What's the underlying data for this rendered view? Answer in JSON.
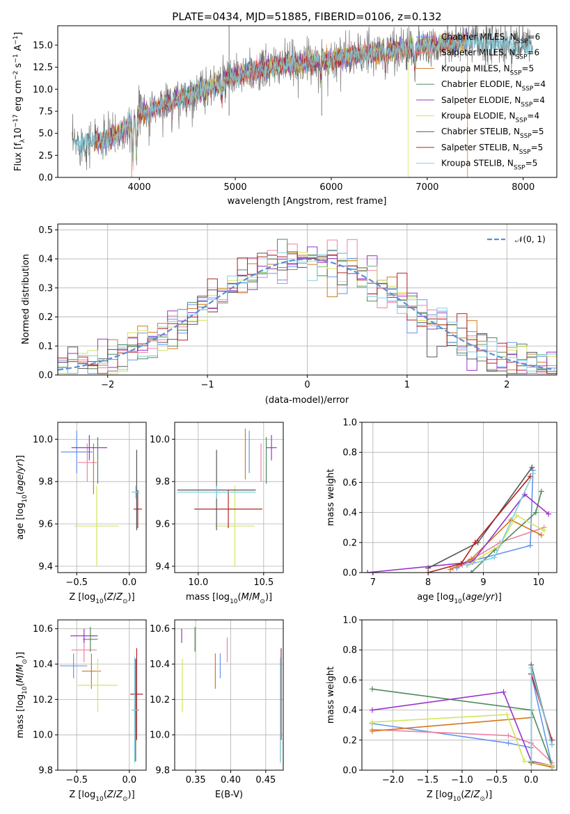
{
  "colors": {
    "Chabrier MILES": "#6495ed",
    "Salpeter MILES": "#f080a0",
    "Kroupa MILES": "#d2781e",
    "Chabrier ELODIE": "#4e8a5a",
    "Salpeter ELODIE": "#9932cc",
    "Kroupa ELODIE": "#d4e45a",
    "Chabrier STELIB": "#555555",
    "Salpeter STELIB": "#b22222",
    "Kroupa STELIB": "#7ecfe0",
    "normal": "#5b8ed6"
  },
  "labels": {
    "wavelength": "wavelength [Angstrom, rest frame]",
    "flux": "Flux [f",
    "resid": "(data-model)/error",
    "normed": "Normed distribution",
    "age": "age  [log",
    "mass": "mass [log",
    "Z": "Z [log",
    "massweight": "mass weight",
    "ebv": "E(B-V)"
  },
  "chart_data": [
    {
      "type": "line",
      "title": "PLATE=0434, MJD=51885, FIBERID=0106, z=0.132",
      "xlabel": "wavelength [Angstrom, rest frame]",
      "ylabel": "Flux [fλ10^-17 erg cm^-2 s^-1 A^-1]",
      "xlim": [
        3150,
        8350
      ],
      "ylim": [
        0,
        17.2
      ],
      "xticks": [
        4000,
        5000,
        6000,
        7000,
        8000
      ],
      "yticks": [
        0.0,
        2.5,
        5.0,
        7.5,
        10.0,
        12.5,
        15.0
      ],
      "continuum": {
        "x": [
          3300,
          3600,
          3800,
          4000,
          4300,
          4600,
          5000,
          5500,
          6000,
          6500,
          7000,
          7400,
          8000,
          8100
        ],
        "y": [
          3.8,
          4.2,
          5.0,
          7.2,
          8.5,
          9.6,
          11.5,
          12.8,
          13.4,
          14.2,
          14.9,
          15.3,
          15.1,
          14.6
        ]
      },
      "series": [
        {
          "name": "Chabrier MILES, N_SSP=6",
          "label": "Chabrier MILES, N",
          "sub": "SSP",
          "tail": "=6"
        },
        {
          "name": "Salpeter MILES, N_SSP=6",
          "label": "Salpeter MILES, N",
          "sub": "SSP",
          "tail": "=6"
        },
        {
          "name": "Kroupa MILES, N_SSP=5",
          "label": "Kroupa MILES, N",
          "sub": "SSP",
          "tail": "=5"
        },
        {
          "name": "Chabrier ELODIE, N_SSP=4",
          "label": "Chabrier ELODIE, N",
          "sub": "SSP",
          "tail": "=4"
        },
        {
          "name": "Salpeter ELODIE, N_SSP=4",
          "label": "Salpeter ELODIE, N",
          "sub": "SSP",
          "tail": "=4"
        },
        {
          "name": "Kroupa ELODIE, N_SSP=4",
          "label": "Kroupa ELODIE, N",
          "sub": "SSP",
          "tail": "=4"
        },
        {
          "name": "Chabrier STELIB, N_SSP=5",
          "label": "Chabrier STELIB, N",
          "sub": "SSP",
          "tail": "=5"
        },
        {
          "name": "Salpeter STELIB, N_SSP=5",
          "label": "Salpeter STELIB, N",
          "sub": "SSP",
          "tail": "=5"
        },
        {
          "name": "Kroupa STELIB, N_SSP=5",
          "label": "Kroupa STELIB, N",
          "sub": "SSP",
          "tail": "=5"
        }
      ],
      "legend": "top-right"
    },
    {
      "type": "histogram",
      "xlabel": "(data-model)/error",
      "ylabel": "Normed distribution",
      "xlim": [
        -2.5,
        2.5
      ],
      "ylim": [
        0,
        0.52
      ],
      "xticks": [
        -2,
        -1,
        0,
        1,
        2
      ],
      "yticks": [
        0.0,
        0.1,
        0.2,
        0.3,
        0.4,
        0.5
      ],
      "bin_width": 0.1,
      "legend": "top-right",
      "overlay": {
        "name": "N(0,1)",
        "mu": 0,
        "sigma": 1
      }
    },
    {
      "type": "scatter",
      "xlabel": "Z [log10(Z/Zsun)]",
      "ylabel": "age [log10(age/yr)]",
      "xlim": [
        -0.68,
        0.16
      ],
      "ylim": [
        9.37,
        10.08
      ],
      "xticks": [
        -0.5,
        0.0
      ],
      "yticks": [
        9.4,
        9.6,
        9.8,
        10.0
      ],
      "points": [
        {
          "s": "Chabrier MILES",
          "x": -0.5,
          "xe": 0.15,
          "y": 9.94,
          "ye": 0.1
        },
        {
          "s": "Salpeter MILES",
          "x": -0.4,
          "xe": 0.09,
          "y": 9.89,
          "ye": 0.09
        },
        {
          "s": "Kroupa MILES",
          "x": -0.34,
          "xe": 0.0,
          "y": 9.86,
          "ye": 0.12
        },
        {
          "s": "Chabrier ELODIE",
          "x": -0.3,
          "xe": 0.0,
          "y": 9.9,
          "ye": 0.11
        },
        {
          "s": "Salpeter ELODIE",
          "x": -0.38,
          "xe": 0.17,
          "y": 9.96,
          "ye": 0.06
        },
        {
          "s": "Kroupa ELODIE",
          "x": -0.31,
          "xe": 0.21,
          "y": 9.59,
          "ye": 0.19
        },
        {
          "s": "Chabrier STELIB",
          "x": 0.07,
          "xe": 0.0,
          "y": 9.76,
          "ye": 0.19
        },
        {
          "s": "Salpeter STELIB",
          "x": 0.08,
          "xe": 0.04,
          "y": 9.67,
          "ye": 0.09
        },
        {
          "s": "Kroupa STELIB",
          "x": 0.06,
          "xe": 0.04,
          "y": 9.75,
          "ye": 0.03
        }
      ]
    },
    {
      "type": "scatter",
      "xlabel": "mass [log10(M/Msun)]",
      "ylabel": "",
      "xlim": [
        9.82,
        10.65
      ],
      "ylim": [
        9.37,
        10.08
      ],
      "xticks": [
        10.0,
        10.5
      ],
      "yticks": [
        9.4,
        9.6,
        9.8,
        10.0
      ],
      "points": [
        {
          "s": "Chabrier MILES",
          "x": 10.39,
          "xe": 0.0,
          "y": 9.94,
          "ye": 0.1
        },
        {
          "s": "Salpeter MILES",
          "x": 10.48,
          "xe": 0.0,
          "y": 9.89,
          "ye": 0.09
        },
        {
          "s": "Kroupa MILES",
          "x": 10.36,
          "xe": 0.0,
          "y": 9.93,
          "ye": 0.12
        },
        {
          "s": "Chabrier ELODIE",
          "x": 10.52,
          "xe": 0.0,
          "y": 9.9,
          "ye": 0.11
        },
        {
          "s": "Salpeter ELODIE",
          "x": 10.56,
          "xe": 0.04,
          "y": 9.96,
          "ye": 0.06
        },
        {
          "s": "Kroupa ELODIE",
          "x": 10.28,
          "xe": 0.15,
          "y": 9.59,
          "ye": 0.19
        },
        {
          "s": "Chabrier STELIB",
          "x": 10.14,
          "xe": 0.3,
          "y": 9.76,
          "ye": 0.19
        },
        {
          "s": "Salpeter STELIB",
          "x": 10.23,
          "xe": 0.26,
          "y": 9.67,
          "ye": 0.09
        },
        {
          "s": "Kroupa STELIB",
          "x": 10.14,
          "xe": 0.3,
          "y": 9.75,
          "ye": 0.03
        }
      ]
    },
    {
      "type": "line",
      "xlabel": "age [log10(age/yr)]",
      "ylabel": "mass weight",
      "xlim": [
        6.8,
        10.33
      ],
      "ylim": [
        0,
        1
      ],
      "xticks": [
        7,
        8,
        9,
        10
      ],
      "yticks": [
        0.0,
        0.2,
        0.4,
        0.6,
        0.8,
        1.0
      ],
      "series": [
        {
          "s": "Chabrier MILES",
          "x": [
            8.52,
            8.72,
            9.85,
            9.9
          ],
          "y": [
            0.03,
            0.07,
            0.18,
            0.68
          ]
        },
        {
          "s": "Salpeter MILES",
          "x": [
            8.45,
            8.62,
            9.3,
            10.1
          ],
          "y": [
            0.03,
            0.05,
            0.2,
            0.3
          ]
        },
        {
          "s": "Kroupa MILES",
          "x": [
            8.4,
            8.78,
            9.5,
            10.05
          ],
          "y": [
            0.02,
            0.09,
            0.35,
            0.25
          ]
        },
        {
          "s": "Chabrier ELODIE",
          "x": [
            8.78,
            9.2,
            9.95,
            10.05
          ],
          "y": [
            0.0,
            0.15,
            0.4,
            0.54
          ]
        },
        {
          "s": "Salpeter ELODIE",
          "x": [
            6.9,
            8.8,
            9.75,
            10.18
          ],
          "y": [
            0.0,
            0.07,
            0.52,
            0.39
          ]
        },
        {
          "s": "Kroupa ELODIE",
          "x": [
            8.72,
            9.3,
            9.6,
            10.1
          ],
          "y": [
            0.05,
            0.18,
            0.38,
            0.28
          ]
        },
        {
          "s": "Chabrier STELIB",
          "x": [
            8.0,
            8.9,
            9.88
          ],
          "y": [
            0.03,
            0.2,
            0.7
          ]
        },
        {
          "s": "Salpeter STELIB",
          "x": [
            8.0,
            8.6,
            8.85,
            9.85
          ],
          "y": [
            0.0,
            0.06,
            0.2,
            0.64
          ]
        },
        {
          "s": "Kroupa STELIB",
          "x": [
            8.7,
            9.2,
            9.9
          ],
          "y": [
            0.05,
            0.1,
            0.66
          ]
        }
      ]
    },
    {
      "type": "scatter",
      "xlabel": "Z [log10(Z/Zsun)]",
      "ylabel": "mass [log10(M/Msun)]",
      "xlim": [
        -0.68,
        0.16
      ],
      "ylim": [
        9.8,
        10.65
      ],
      "xticks": [
        -0.5,
        0.0
      ],
      "yticks": [
        9.8,
        10.0,
        10.2,
        10.4,
        10.6
      ],
      "points": [
        {
          "s": "Chabrier MILES",
          "x": -0.53,
          "xe": 0.13,
          "y": 10.39,
          "ye": 0.07
        },
        {
          "s": "Salpeter MILES",
          "x": -0.43,
          "xe": 0.12,
          "y": 10.48,
          "ye": 0.07
        },
        {
          "s": "Kroupa MILES",
          "x": -0.36,
          "xe": 0.09,
          "y": 10.36,
          "ye": 0.1
        },
        {
          "s": "Chabrier ELODIE",
          "x": -0.37,
          "xe": 0.07,
          "y": 10.54,
          "ye": 0.07
        },
        {
          "s": "Salpeter ELODIE",
          "x": -0.43,
          "xe": 0.13,
          "y": 10.56,
          "ye": 0.04
        },
        {
          "s": "Kroupa ELODIE",
          "x": -0.3,
          "xe": 0.19,
          "y": 10.28,
          "ye": 0.15
        },
        {
          "s": "Chabrier STELIB",
          "x": 0.06,
          "xe": 0.03,
          "y": 10.14,
          "ye": 0.29
        },
        {
          "s": "Salpeter STELIB",
          "x": 0.07,
          "xe": 0.06,
          "y": 10.23,
          "ye": 0.26
        },
        {
          "s": "Kroupa STELIB",
          "x": 0.05,
          "xe": 0.03,
          "y": 10.14,
          "ye": 0.3
        }
      ]
    },
    {
      "type": "scatter",
      "xlabel": "E(B-V)",
      "ylabel": "",
      "xlim": [
        0.32,
        0.475
      ],
      "ylim": [
        9.8,
        10.65
      ],
      "xticks": [
        0.35,
        0.4,
        0.45
      ],
      "yticks": [
        9.8,
        10.0,
        10.2,
        10.4,
        10.6
      ],
      "points": [
        {
          "s": "Chabrier MILES",
          "x": 0.385,
          "xe": 0.0,
          "y": 10.39,
          "ye": 0.07
        },
        {
          "s": "Salpeter MILES",
          "x": 0.395,
          "xe": 0.0,
          "y": 10.48,
          "ye": 0.07
        },
        {
          "s": "Kroupa MILES",
          "x": 0.378,
          "xe": 0.0,
          "y": 10.36,
          "ye": 0.1
        },
        {
          "s": "Chabrier ELODIE",
          "x": 0.349,
          "xe": 0.0,
          "y": 10.54,
          "ye": 0.07
        },
        {
          "s": "Salpeter ELODIE",
          "x": 0.33,
          "xe": 0.0,
          "y": 10.56,
          "ye": 0.04
        },
        {
          "s": "Kroupa ELODIE",
          "x": 0.331,
          "xe": 0.0,
          "y": 10.28,
          "ye": 0.15
        },
        {
          "s": "Chabrier STELIB",
          "x": 0.471,
          "xe": 0.0,
          "y": 10.14,
          "ye": 0.29
        },
        {
          "s": "Salpeter STELIB",
          "x": 0.472,
          "xe": 0.0,
          "y": 10.23,
          "ye": 0.26
        },
        {
          "s": "Kroupa STELIB",
          "x": 0.471,
          "xe": 0.0,
          "y": 10.14,
          "ye": 0.3
        }
      ]
    },
    {
      "type": "line",
      "xlabel": "Z [log10(Z/Zsun)]",
      "ylabel": "mass weight",
      "xlim": [
        -2.45,
        0.37
      ],
      "ylim": [
        0,
        1
      ],
      "xticks": [
        -2.0,
        -1.5,
        -1.0,
        -0.5,
        0.0
      ],
      "yticks": [
        0.0,
        0.2,
        0.4,
        0.6,
        0.8,
        1.0
      ],
      "series": [
        {
          "s": "Chabrier MILES",
          "x": [
            -2.3,
            -0.33,
            0.0,
            0.0,
            0.3
          ],
          "y": [
            0.31,
            0.18,
            0.15,
            0.64,
            0.03
          ]
        },
        {
          "s": "Salpeter MILES",
          "x": [
            -2.3,
            -0.33,
            0.0,
            0.3
          ],
          "y": [
            0.27,
            0.23,
            0.18,
            0.05
          ]
        },
        {
          "s": "Kroupa MILES",
          "x": [
            -2.3,
            0.0,
            0.0,
            0.3
          ],
          "y": [
            0.26,
            0.35,
            0.05,
            0.02
          ]
        },
        {
          "s": "Chabrier ELODIE",
          "x": [
            -2.3,
            0.0,
            0.3
          ],
          "y": [
            0.54,
            0.4,
            0.03
          ]
        },
        {
          "s": "Salpeter ELODIE",
          "x": [
            -2.3,
            -0.4,
            0.0,
            0.3
          ],
          "y": [
            0.4,
            0.52,
            0.06,
            0.03
          ]
        },
        {
          "s": "Kroupa ELODIE",
          "x": [
            -2.3,
            -0.35,
            -0.1,
            0.3
          ],
          "y": [
            0.32,
            0.37,
            0.06,
            0.03
          ]
        },
        {
          "s": "Chabrier STELIB",
          "x": [
            0.0,
            0.0,
            0.3
          ],
          "y": [
            0.05,
            0.7,
            0.17
          ]
        },
        {
          "s": "Salpeter STELIB",
          "x": [
            0.0,
            0.3
          ],
          "y": [
            0.64,
            0.2
          ]
        },
        {
          "s": "Kroupa STELIB",
          "x": [
            0.0,
            0.0,
            0.3
          ],
          "y": [
            0.06,
            0.68,
            0.17
          ]
        }
      ]
    }
  ]
}
